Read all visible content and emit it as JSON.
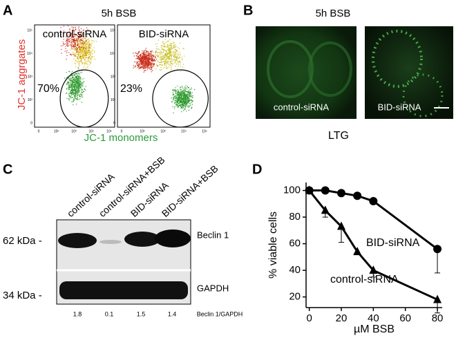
{
  "panels": {
    "a": {
      "label": "A",
      "title": "5h BSB",
      "y_label": "JC-1 aggrgates",
      "x_label": "JC-1 monomers",
      "ticks": [
        "0",
        "10²",
        "10³",
        "10⁴",
        "10⁵"
      ],
      "plots": [
        {
          "label": "control-siRNA",
          "percent": "70%"
        },
        {
          "label": "BID-siRNA",
          "percent": "23%"
        }
      ]
    },
    "b": {
      "label": "B",
      "title": "5h BSB",
      "images": [
        {
          "label": "control-siRNA"
        },
        {
          "label": "BID-siRNA"
        }
      ],
      "caption": "LTG"
    },
    "c": {
      "label": "C",
      "lanes": [
        "control-siRNA",
        "control-siRNA+BSB",
        "BID-siRNA",
        "BID-siRNA+BSB"
      ],
      "rows": [
        {
          "size": "62 kDa -",
          "name": "Beclin 1"
        },
        {
          "size": "34 kDa -",
          "name": "GAPDH"
        }
      ],
      "ratios": [
        "1.8",
        "0.1",
        "1.5",
        "1.4"
      ],
      "ratio_label": "Beclin 1/GAPDH"
    },
    "d": {
      "label": "D",
      "chart_data": {
        "type": "line",
        "x_label": "µM BSB",
        "y_label": "% viable cells",
        "xlim": [
          -2,
          83
        ],
        "ylim": [
          12,
          106
        ],
        "xticks": [
          0,
          20,
          40,
          60,
          80
        ],
        "yticks": [
          20,
          40,
          60,
          80,
          100
        ],
        "series": [
          {
            "name": "BID-siRNA",
            "marker": "circle",
            "color": "#000000",
            "x": [
              0,
              10,
              20,
              30,
              40,
              80
            ],
            "values": [
              100,
              100,
              98,
              96,
              92,
              56
            ],
            "errors": [
              0,
              0,
              2,
              0,
              2,
              18
            ]
          },
          {
            "name": "control-siRNA",
            "marker": "triangle",
            "color": "#000000",
            "x": [
              0,
              10,
              20,
              30,
              40,
              80
            ],
            "values": [
              100,
              85,
              73,
              54,
              40,
              18
            ],
            "errors": [
              0,
              5,
              12,
              0,
              5,
              10
            ]
          }
        ]
      }
    }
  }
}
